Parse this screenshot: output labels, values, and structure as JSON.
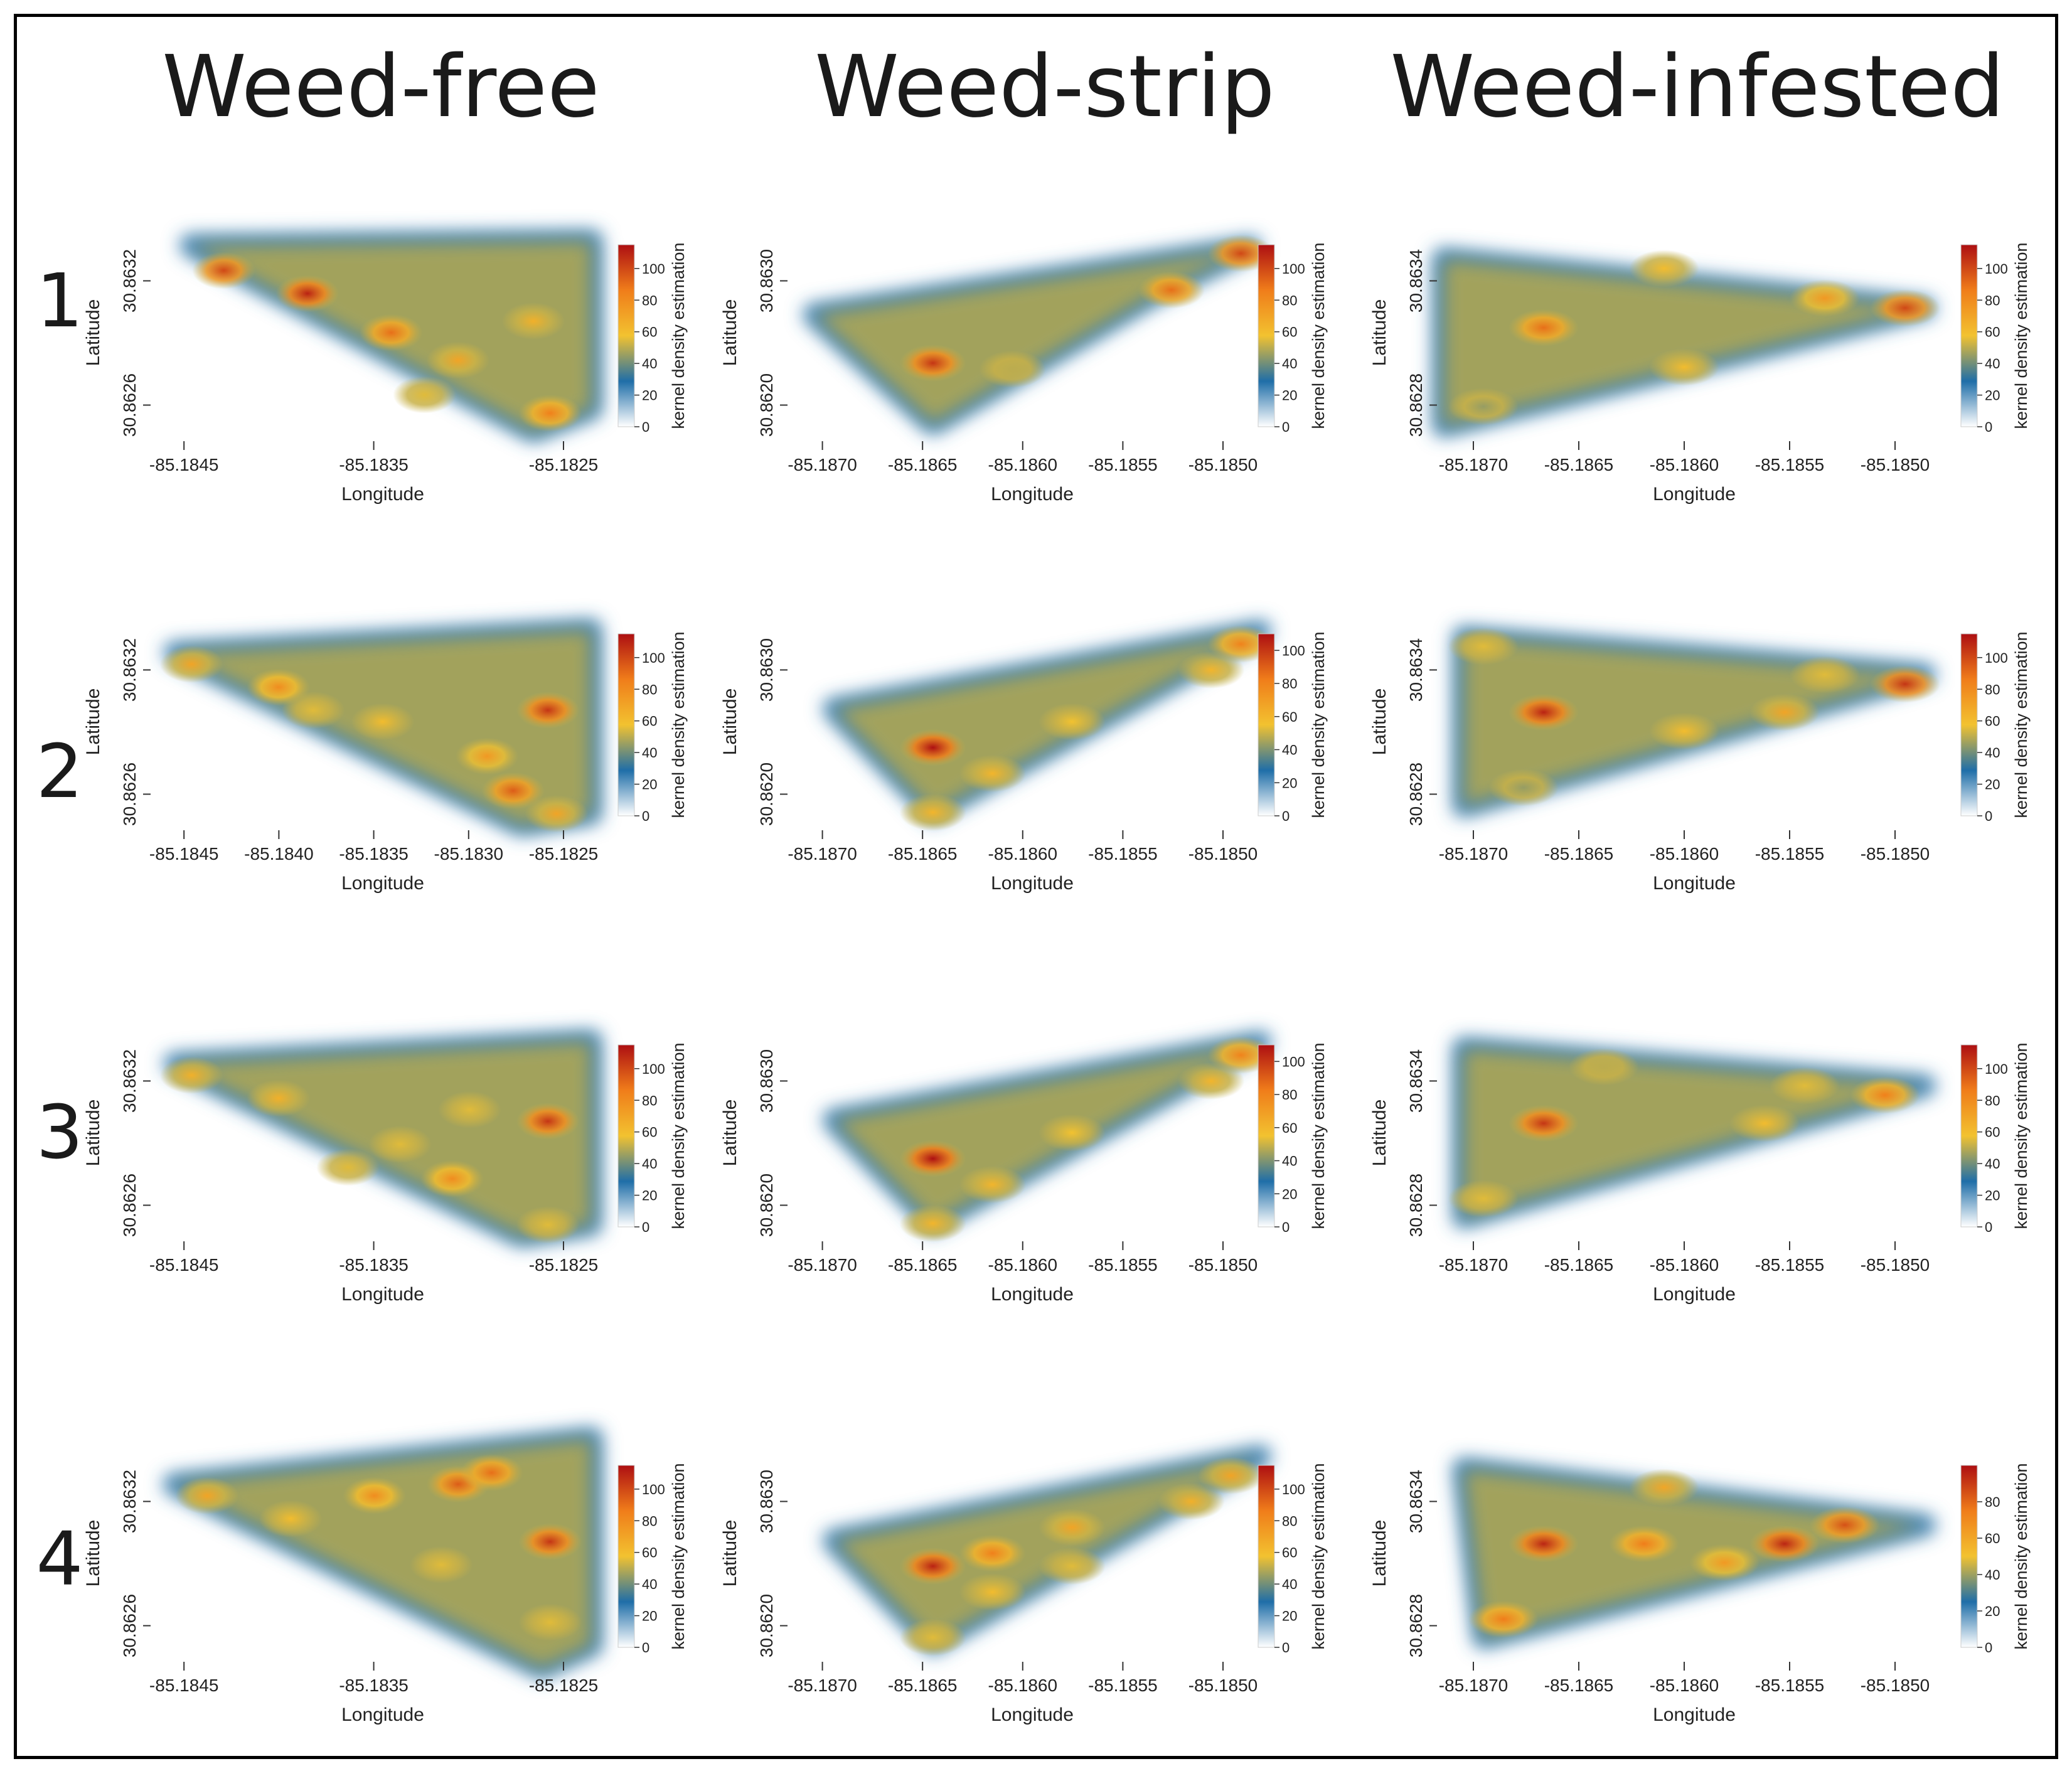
{
  "column_titles": [
    "Weed-free",
    "Weed-strip",
    "Weed-infested"
  ],
  "row_labels": [
    "1",
    "2",
    "3",
    "4"
  ],
  "colors": {
    "density_scale": [
      "#ffffff",
      "#1f6ea8",
      "#f2c230",
      "#f07d1a",
      "#ad0f12"
    ],
    "frame": "#000000"
  },
  "chart_data": [
    {
      "type": "heatmap",
      "treatment": "Weed-free",
      "row": "1",
      "xlabel": "Longitude",
      "ylabel": "Latitude",
      "colorbar_label": "kernel density estimation",
      "xticks": [
        "-85.1845",
        "-85.1835",
        "-85.1825"
      ],
      "yticks": [
        "30.8626",
        "30.8632"
      ],
      "colorbar_ticks": [
        "0",
        "20",
        "40",
        "60",
        "80",
        "100"
      ],
      "colorbar_max": 115,
      "xlim": [
        -85.1848,
        -85.1821
      ],
      "ylim": [
        30.8625,
        30.8634
      ],
      "field": [
        [
          -85.1846,
          30.86333
        ],
        [
          -85.1822,
          30.86335
        ],
        [
          -85.1822,
          30.86262
        ],
        [
          -85.18255,
          30.86252
        ]
      ],
      "hotspots": [
        {
          "x": -85.1844,
          "y": 30.86322,
          "value": 100
        },
        {
          "x": -85.1839,
          "y": 30.86312,
          "value": 110
        },
        {
          "x": -85.1834,
          "y": 30.86295,
          "value": 90
        },
        {
          "x": -85.183,
          "y": 30.86283,
          "value": 70
        },
        {
          "x": -85.18255,
          "y": 30.863,
          "value": 65
        },
        {
          "x": -85.18245,
          "y": 30.8626,
          "value": 85
        },
        {
          "x": -85.1832,
          "y": 30.86268,
          "value": 55
        }
      ]
    },
    {
      "type": "heatmap",
      "treatment": "Weed-strip",
      "row": "1",
      "xlabel": "Longitude",
      "ylabel": "Latitude",
      "colorbar_label": "kernel density estimation",
      "xticks": [
        "-85.1870",
        "-85.1865",
        "-85.1860",
        "-85.1855",
        "-85.1850"
      ],
      "yticks": [
        "30.8620",
        "30.8630"
      ],
      "colorbar_ticks": [
        "0",
        "20",
        "40",
        "60",
        "80",
        "100"
      ],
      "colorbar_max": 115,
      "xlim": [
        -85.1871,
        -85.1847
      ],
      "ylim": [
        30.8617,
        30.8634
      ],
      "field": [
        [
          -85.187,
          30.8627
        ],
        [
          -85.1848,
          30.86325
        ],
        [
          -85.1853,
          30.86285
        ],
        [
          -85.1864,
          30.8618
        ]
      ],
      "hotspots": [
        {
          "x": -85.1864,
          "y": 30.8623,
          "value": 105
        },
        {
          "x": -85.1852,
          "y": 30.8629,
          "value": 90
        },
        {
          "x": -85.18485,
          "y": 30.8632,
          "value": 100
        },
        {
          "x": -85.186,
          "y": 30.86225,
          "value": 50
        }
      ]
    },
    {
      "type": "heatmap",
      "treatment": "Weed-infested",
      "row": "1",
      "xlabel": "Longitude",
      "ylabel": "Latitude",
      "colorbar_label": "kernel density estimation",
      "xticks": [
        "-85.1870",
        "-85.1865",
        "-85.1860",
        "-85.1855",
        "-85.1850"
      ],
      "yticks": [
        "30.8628",
        "30.8634"
      ],
      "colorbar_ticks": [
        "0",
        "20",
        "40",
        "60",
        "80",
        "100"
      ],
      "colorbar_max": 115,
      "xlim": [
        -85.1872,
        -85.1847
      ],
      "ylim": [
        30.86265,
        30.8637
      ],
      "field": [
        [
          -85.1872,
          30.86355
        ],
        [
          -85.1848,
          30.8633
        ],
        [
          -85.1872,
          30.8627
        ]
      ],
      "hotspots": [
        {
          "x": -85.1867,
          "y": 30.8632,
          "value": 90
        },
        {
          "x": -85.1849,
          "y": 30.8633,
          "value": 100
        },
        {
          "x": -85.1853,
          "y": 30.86335,
          "value": 75
        },
        {
          "x": -85.1861,
          "y": 30.8635,
          "value": 60
        },
        {
          "x": -85.186,
          "y": 30.863,
          "value": 60
        },
        {
          "x": -85.187,
          "y": 30.8628,
          "value": 45
        }
      ]
    },
    {
      "type": "heatmap",
      "treatment": "Weed-free",
      "row": "2",
      "xlabel": "Longitude",
      "ylabel": "Latitude",
      "colorbar_label": "kernel density estimation",
      "xticks": [
        "-85.1845",
        "-85.1840",
        "-85.1835",
        "-85.1830",
        "-85.1825"
      ],
      "yticks": [
        "30.8626",
        "30.8632"
      ],
      "colorbar_ticks": [
        "0",
        "20",
        "40",
        "60",
        "80",
        "100"
      ],
      "colorbar_max": 115,
      "xlim": [
        -85.1847,
        -85.1821
      ],
      "ylim": [
        30.8625,
        30.8634
      ],
      "field": [
        [
          -85.1846,
          30.86325
        ],
        [
          -85.1822,
          30.86335
        ],
        [
          -85.1822,
          30.86255
        ],
        [
          -85.1826,
          30.8625
        ]
      ],
      "hotspots": [
        {
          "x": -85.1845,
          "y": 30.8632,
          "value": 70
        },
        {
          "x": -85.184,
          "y": 30.8631,
          "value": 80
        },
        {
          "x": -85.18245,
          "y": 30.863,
          "value": 105
        },
        {
          "x": -85.18265,
          "y": 30.86265,
          "value": 95
        },
        {
          "x": -85.1828,
          "y": 30.8628,
          "value": 75
        },
        {
          "x": -85.1834,
          "y": 30.86295,
          "value": 60
        },
        {
          "x": -85.1838,
          "y": 30.863,
          "value": 55
        },
        {
          "x": -85.1824,
          "y": 30.86255,
          "value": 70
        }
      ]
    },
    {
      "type": "heatmap",
      "treatment": "Weed-strip",
      "row": "2",
      "xlabel": "Longitude",
      "ylabel": "Latitude",
      "colorbar_label": "kernel density estimation",
      "xticks": [
        "-85.1870",
        "-85.1865",
        "-85.1860",
        "-85.1855",
        "-85.1850"
      ],
      "yticks": [
        "30.8620",
        "30.8630"
      ],
      "colorbar_ticks": [
        "0",
        "20",
        "40",
        "60",
        "80",
        "100"
      ],
      "colorbar_max": 110,
      "xlim": [
        -85.1871,
        -85.1847
      ],
      "ylim": [
        30.8618,
        30.8634
      ],
      "field": [
        [
          -85.1869,
          30.8627
        ],
        [
          -85.18475,
          30.8633
        ],
        [
          -85.1864,
          30.8619
        ]
      ],
      "hotspots": [
        {
          "x": -85.1864,
          "y": 30.8624,
          "value": 110
        },
        {
          "x": -85.18485,
          "y": 30.8632,
          "value": 80
        },
        {
          "x": -85.185,
          "y": 30.863,
          "value": 60
        },
        {
          "x": -85.1861,
          "y": 30.8622,
          "value": 60
        },
        {
          "x": -85.1864,
          "y": 30.8619,
          "value": 60
        },
        {
          "x": -85.1857,
          "y": 30.8626,
          "value": 55
        }
      ]
    },
    {
      "type": "heatmap",
      "treatment": "Weed-infested",
      "row": "2",
      "xlabel": "Longitude",
      "ylabel": "Latitude",
      "colorbar_label": "kernel density estimation",
      "xticks": [
        "-85.1870",
        "-85.1865",
        "-85.1860",
        "-85.1855",
        "-85.1850"
      ],
      "yticks": [
        "30.8628",
        "30.8634"
      ],
      "colorbar_ticks": [
        "0",
        "20",
        "40",
        "60",
        "80",
        "100"
      ],
      "colorbar_max": 115,
      "xlim": [
        -85.1872,
        -85.1847
      ],
      "ylim": [
        30.8626,
        30.8637
      ],
      "field": [
        [
          -85.1871,
          30.8636
        ],
        [
          -85.1848,
          30.8634
        ],
        [
          -85.1871,
          30.8627
        ]
      ],
      "hotspots": [
        {
          "x": -85.1867,
          "y": 30.8632,
          "value": 110
        },
        {
          "x": -85.1849,
          "y": 30.86335,
          "value": 105
        },
        {
          "x": -85.1855,
          "y": 30.8632,
          "value": 70
        },
        {
          "x": -85.186,
          "y": 30.8631,
          "value": 60
        },
        {
          "x": -85.187,
          "y": 30.86355,
          "value": 55
        },
        {
          "x": -85.1853,
          "y": 30.8634,
          "value": 55
        },
        {
          "x": -85.1868,
          "y": 30.8628,
          "value": 45
        }
      ]
    },
    {
      "type": "heatmap",
      "treatment": "Weed-free",
      "row": "3",
      "xlabel": "Longitude",
      "ylabel": "Latitude",
      "colorbar_label": "kernel density estimation",
      "xticks": [
        "-85.1845",
        "-85.1835",
        "-85.1825"
      ],
      "yticks": [
        "30.8626",
        "30.8632"
      ],
      "colorbar_ticks": [
        "0",
        "20",
        "40",
        "60",
        "80",
        "100"
      ],
      "colorbar_max": 115,
      "xlim": [
        -85.1847,
        -85.1821
      ],
      "ylim": [
        30.8625,
        30.8634
      ],
      "field": [
        [
          -85.1846,
          30.86325
        ],
        [
          -85.1822,
          30.86335
        ],
        [
          -85.1822,
          30.86255
        ],
        [
          -85.1826,
          30.8625
        ]
      ],
      "hotspots": [
        {
          "x": -85.18245,
          "y": 30.863,
          "value": 105
        },
        {
          "x": -85.183,
          "y": 30.86275,
          "value": 80
        },
        {
          "x": -85.1845,
          "y": 30.8632,
          "value": 65
        },
        {
          "x": -85.184,
          "y": 30.8631,
          "value": 65
        },
        {
          "x": -85.1833,
          "y": 30.8629,
          "value": 55
        },
        {
          "x": -85.1836,
          "y": 30.8628,
          "value": 55
        },
        {
          "x": -85.18245,
          "y": 30.86255,
          "value": 55
        },
        {
          "x": -85.1829,
          "y": 30.86305,
          "value": 55
        }
      ]
    },
    {
      "type": "heatmap",
      "treatment": "Weed-strip",
      "row": "3",
      "xlabel": "Longitude",
      "ylabel": "Latitude",
      "colorbar_label": "kernel density estimation",
      "xticks": [
        "-85.1870",
        "-85.1865",
        "-85.1860",
        "-85.1855",
        "-85.1850"
      ],
      "yticks": [
        "30.8620",
        "30.8630"
      ],
      "colorbar_ticks": [
        "0",
        "20",
        "40",
        "60",
        "80",
        "100"
      ],
      "colorbar_max": 110,
      "xlim": [
        -85.1871,
        -85.1847
      ],
      "ylim": [
        30.8618,
        30.8634
      ],
      "field": [
        [
          -85.1869,
          30.8627
        ],
        [
          -85.18475,
          30.8633
        ],
        [
          -85.1864,
          30.8619
        ]
      ],
      "hotspots": [
        {
          "x": -85.1864,
          "y": 30.8624,
          "value": 110
        },
        {
          "x": -85.18485,
          "y": 30.8632,
          "value": 80
        },
        {
          "x": -85.185,
          "y": 30.863,
          "value": 60
        },
        {
          "x": -85.1861,
          "y": 30.8622,
          "value": 60
        },
        {
          "x": -85.1864,
          "y": 30.8619,
          "value": 60
        },
        {
          "x": -85.1857,
          "y": 30.8626,
          "value": 55
        }
      ]
    },
    {
      "type": "heatmap",
      "treatment": "Weed-infested",
      "row": "3",
      "xlabel": "Longitude",
      "ylabel": "Latitude",
      "colorbar_label": "kernel density estimation",
      "xticks": [
        "-85.1870",
        "-85.1865",
        "-85.1860",
        "-85.1855",
        "-85.1850"
      ],
      "yticks": [
        "30.8628",
        "30.8634"
      ],
      "colorbar_ticks": [
        "0",
        "20",
        "40",
        "60",
        "80",
        "100"
      ],
      "colorbar_max": 115,
      "xlim": [
        -85.1872,
        -85.1847
      ],
      "ylim": [
        30.8626,
        30.8637
      ],
      "field": [
        [
          -85.1871,
          30.8636
        ],
        [
          -85.1848,
          30.8634
        ],
        [
          -85.1871,
          30.8627
        ]
      ],
      "hotspots": [
        {
          "x": -85.1867,
          "y": 30.8632,
          "value": 105
        },
        {
          "x": -85.185,
          "y": 30.86335,
          "value": 85
        },
        {
          "x": -85.1856,
          "y": 30.8632,
          "value": 60
        },
        {
          "x": -85.187,
          "y": 30.8628,
          "value": 55
        },
        {
          "x": -85.1864,
          "y": 30.8635,
          "value": 50
        },
        {
          "x": -85.1854,
          "y": 30.8634,
          "value": 55
        }
      ]
    },
    {
      "type": "heatmap",
      "treatment": "Weed-free",
      "row": "4",
      "xlabel": "Longitude",
      "ylabel": "Latitude",
      "colorbar_label": "kernel density estimation",
      "xticks": [
        "-85.1845",
        "-85.1835",
        "-85.1825"
      ],
      "yticks": [
        "30.8626",
        "30.8632"
      ],
      "colorbar_ticks": [
        "0",
        "20",
        "40",
        "60",
        "80",
        "100"
      ],
      "colorbar_max": 115,
      "xlim": [
        -85.1848,
        -85.1821
      ],
      "ylim": [
        30.8625,
        30.8634
      ],
      "field": [
        [
          -85.1847,
          30.86325
        ],
        [
          -85.1822,
          30.86345
        ],
        [
          -85.1822,
          30.86255
        ],
        [
          -85.1825,
          30.86245
        ]
      ],
      "hotspots": [
        {
          "x": -85.18245,
          "y": 30.863,
          "value": 105
        },
        {
          "x": -85.183,
          "y": 30.86325,
          "value": 95
        },
        {
          "x": -85.1828,
          "y": 30.8633,
          "value": 90
        },
        {
          "x": -85.1835,
          "y": 30.8632,
          "value": 80
        },
        {
          "x": -85.1845,
          "y": 30.8632,
          "value": 70
        },
        {
          "x": -85.184,
          "y": 30.8631,
          "value": 60
        },
        {
          "x": -85.1831,
          "y": 30.8629,
          "value": 55
        },
        {
          "x": -85.18245,
          "y": 30.86265,
          "value": 55
        }
      ]
    },
    {
      "type": "heatmap",
      "treatment": "Weed-strip",
      "row": "4",
      "xlabel": "Longitude",
      "ylabel": "Latitude",
      "colorbar_label": "kernel density estimation",
      "xticks": [
        "-85.1870",
        "-85.1865",
        "-85.1860",
        "-85.1855",
        "-85.1850"
      ],
      "yticks": [
        "30.8620",
        "30.8630"
      ],
      "colorbar_ticks": [
        "0",
        "20",
        "40",
        "60",
        "80",
        "100"
      ],
      "colorbar_max": 115,
      "xlim": [
        -85.1871,
        -85.1847
      ],
      "ylim": [
        30.8618,
        30.8634
      ],
      "field": [
        [
          -85.1869,
          30.8627
        ],
        [
          -85.18475,
          30.86335
        ],
        [
          -85.1864,
          30.8619
        ]
      ],
      "hotspots": [
        {
          "x": -85.1864,
          "y": 30.8625,
          "value": 110
        },
        {
          "x": -85.1861,
          "y": 30.8626,
          "value": 85
        },
        {
          "x": -85.1857,
          "y": 30.8628,
          "value": 70
        },
        {
          "x": -85.1849,
          "y": 30.8632,
          "value": 70
        },
        {
          "x": -85.1851,
          "y": 30.863,
          "value": 65
        },
        {
          "x": -85.1861,
          "y": 30.8623,
          "value": 60
        },
        {
          "x": -85.1864,
          "y": 30.86195,
          "value": 55
        },
        {
          "x": -85.1857,
          "y": 30.8625,
          "value": 55
        }
      ]
    },
    {
      "type": "heatmap",
      "treatment": "Weed-infested",
      "row": "4",
      "xlabel": "Longitude",
      "ylabel": "Latitude",
      "colorbar_label": "kernel density estimation",
      "xticks": [
        "-85.1870",
        "-85.1865",
        "-85.1860",
        "-85.1855",
        "-85.1850"
      ],
      "yticks": [
        "30.8628",
        "30.8634"
      ],
      "colorbar_ticks": [
        "0",
        "20",
        "40",
        "60",
        "80"
      ],
      "colorbar_max": 100,
      "xlim": [
        -85.1872,
        -85.1847
      ],
      "ylim": [
        30.8626,
        30.8637
      ],
      "field": [
        [
          -85.1871,
          30.8636
        ],
        [
          -85.1848,
          30.8633
        ],
        [
          -85.187,
          30.8627
        ]
      ],
      "hotspots": [
        {
          "x": -85.1867,
          "y": 30.8632,
          "value": 95
        },
        {
          "x": -85.1855,
          "y": 30.8632,
          "value": 95
        },
        {
          "x": -85.1852,
          "y": 30.8633,
          "value": 85
        },
        {
          "x": -85.1862,
          "y": 30.8632,
          "value": 75
        },
        {
          "x": -85.1869,
          "y": 30.8628,
          "value": 75
        },
        {
          "x": -85.1861,
          "y": 30.8635,
          "value": 60
        },
        {
          "x": -85.1858,
          "y": 30.8631,
          "value": 65
        }
      ]
    }
  ]
}
